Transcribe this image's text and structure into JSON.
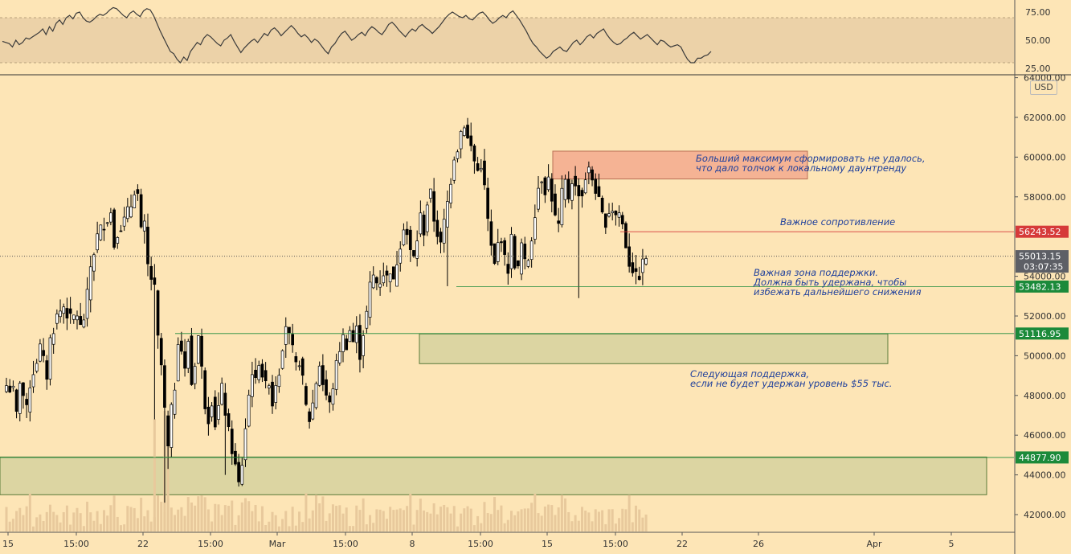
{
  "chart_data": [
    {
      "type": "line",
      "name": "rsi-panel",
      "ylim": [
        17,
        82
      ],
      "band": [
        30,
        70
      ],
      "y_ticks": [
        "75.00",
        "50.00",
        "25.00"
      ],
      "y_tick_values": [
        75,
        50,
        25
      ],
      "values": [
        49,
        48,
        47,
        44,
        50,
        46,
        48,
        52,
        51,
        53,
        55,
        57,
        60,
        55,
        62,
        58,
        65,
        68,
        64,
        70,
        72,
        69,
        74,
        75,
        70,
        67,
        66,
        68,
        71,
        73,
        72,
        74,
        77,
        79,
        78,
        75,
        72,
        70,
        74,
        76,
        73,
        71,
        76,
        78,
        77,
        72,
        65,
        58,
        52,
        46,
        40,
        38,
        33,
        30,
        35,
        32,
        40,
        44,
        48,
        46,
        52,
        55,
        53,
        50,
        47,
        45,
        50,
        52,
        55,
        49,
        44,
        39,
        43,
        46,
        49,
        51,
        48,
        52,
        56,
        54,
        59,
        61,
        58,
        54,
        57,
        60,
        63,
        60,
        56,
        53,
        55,
        52,
        48,
        51,
        49,
        45,
        41,
        38,
        44,
        47,
        52,
        56,
        58,
        54,
        50,
        52,
        55,
        57,
        54,
        59,
        62,
        60,
        57,
        55,
        59,
        64,
        66,
        63,
        59,
        56,
        53,
        57,
        60,
        58,
        62,
        64,
        61,
        59,
        56,
        59,
        62,
        66,
        70,
        73,
        75,
        73,
        71,
        70,
        72,
        69,
        68,
        71,
        74,
        75,
        72,
        68,
        65,
        67,
        70,
        72,
        70,
        74,
        76,
        72,
        68,
        63,
        58,
        52,
        47,
        44,
        40,
        37,
        34,
        36,
        40,
        42,
        44,
        41,
        40,
        44,
        48,
        50,
        46,
        49,
        53,
        55,
        52,
        56,
        58,
        60,
        55,
        51,
        48,
        46,
        47,
        50,
        52,
        55,
        57,
        54,
        51,
        53,
        55,
        52,
        49,
        46,
        50,
        49,
        46,
        44,
        45,
        46,
        44,
        38,
        33,
        30,
        30,
        34,
        34,
        36,
        37,
        40
      ]
    },
    {
      "type": "candlestick",
      "name": "price-panel",
      "currency": "USD",
      "ylim": [
        41000,
        64000
      ],
      "y_ticks": [
        "64000.00",
        "62000.00",
        "60000.00",
        "58000.00",
        "54000.00",
        "52000.00",
        "50000.00",
        "48000.00",
        "46000.00",
        "44000.00",
        "42000.00"
      ],
      "y_tick_values": [
        64000,
        62000,
        60000,
        58000,
        54000,
        52000,
        50000,
        48000,
        46000,
        44000,
        42000
      ],
      "x_ticks": [
        "15",
        "15:00",
        "22",
        "15:00",
        "Mar",
        "15:00",
        "8",
        "15:00",
        "15",
        "15:00",
        "22",
        "26",
        "Apr",
        "5"
      ],
      "close_path": [
        [
          0,
          48500
        ],
        [
          2,
          48200
        ],
        [
          3,
          47000
        ],
        [
          4,
          48800
        ],
        [
          6,
          47200
        ],
        [
          7,
          48600
        ],
        [
          9,
          49800
        ],
        [
          10,
          50400
        ],
        [
          12,
          49000
        ],
        [
          13,
          50800
        ],
        [
          15,
          52000
        ],
        [
          17,
          52500
        ],
        [
          19,
          51800
        ],
        [
          21,
          52100
        ],
        [
          22,
          51400
        ],
        [
          23,
          51900
        ],
        [
          24,
          53000
        ],
        [
          25,
          54500
        ],
        [
          27,
          56000
        ],
        [
          29,
          56700
        ],
        [
          31,
          57200
        ],
        [
          32,
          55600
        ],
        [
          33,
          56300
        ],
        [
          35,
          56800
        ],
        [
          37,
          57600
        ],
        [
          38,
          58400
        ],
        [
          39,
          58100
        ],
        [
          40,
          56200
        ],
        [
          41,
          56500
        ],
        [
          42,
          54500
        ],
        [
          44,
          53300
        ],
        [
          45,
          50800
        ],
        [
          46,
          49500
        ],
        [
          47,
          47200
        ],
        [
          48,
          45300
        ],
        [
          49,
          47200
        ],
        [
          50,
          48500
        ],
        [
          51,
          50900
        ],
        [
          52,
          50300
        ],
        [
          53,
          49200
        ],
        [
          54,
          50800
        ],
        [
          55,
          48600
        ],
        [
          56,
          49700
        ],
        [
          57,
          51000
        ],
        [
          58,
          49300
        ],
        [
          59,
          47600
        ],
        [
          60,
          46900
        ],
        [
          61,
          47800
        ],
        [
          62,
          46600
        ],
        [
          63,
          47400
        ],
        [
          64,
          48300
        ],
        [
          65,
          47200
        ],
        [
          66,
          46100
        ],
        [
          67,
          45300
        ],
        [
          68,
          44400
        ],
        [
          69,
          43500
        ],
        [
          70,
          44600
        ],
        [
          71,
          46400
        ],
        [
          72,
          48000
        ],
        [
          73,
          49300
        ],
        [
          74,
          48600
        ],
        [
          75,
          49800
        ],
        [
          76,
          49100
        ],
        [
          77,
          48400
        ],
        [
          78,
          48800
        ],
        [
          79,
          47600
        ],
        [
          80,
          48700
        ],
        [
          81,
          49300
        ],
        [
          82,
          50600
        ],
        [
          83,
          51600
        ],
        [
          84,
          50900
        ],
        [
          85,
          50200
        ],
        [
          86,
          49400
        ],
        [
          87,
          49800
        ],
        [
          88,
          48700
        ],
        [
          89,
          47400
        ],
        [
          90,
          46800
        ],
        [
          91,
          47600
        ],
        [
          92,
          48700
        ],
        [
          93,
          49600
        ],
        [
          94,
          48600
        ],
        [
          95,
          48000
        ],
        [
          96,
          47500
        ],
        [
          97,
          48500
        ],
        [
          98,
          49500
        ],
        [
          99,
          50400
        ],
        [
          100,
          50900
        ],
        [
          101,
          50600
        ],
        [
          102,
          51300
        ],
        [
          103,
          50700
        ],
        [
          104,
          51300
        ],
        [
          105,
          50100
        ],
        [
          106,
          51200
        ],
        [
          107,
          52100
        ],
        [
          108,
          53500
        ],
        [
          109,
          54000
        ],
        [
          110,
          53700
        ],
        [
          111,
          53800
        ],
        [
          112,
          54200
        ],
        [
          113,
          53900
        ],
        [
          114,
          54400
        ],
        [
          115,
          53600
        ],
        [
          116,
          54800
        ],
        [
          117,
          55700
        ],
        [
          118,
          56600
        ],
        [
          119,
          56100
        ],
        [
          120,
          55200
        ],
        [
          121,
          54900
        ],
        [
          122,
          55900
        ],
        [
          123,
          57000
        ],
        [
          124,
          56300
        ],
        [
          125,
          57700
        ],
        [
          126,
          58100
        ],
        [
          127,
          56900
        ],
        [
          128,
          56200
        ],
        [
          129,
          55500
        ],
        [
          130,
          56700
        ],
        [
          131,
          57700
        ],
        [
          132,
          58900
        ],
        [
          133,
          60100
        ],
        [
          134,
          60500
        ],
        [
          135,
          61300
        ],
        [
          136,
          61700
        ],
        [
          137,
          60900
        ],
        [
          138,
          60500
        ],
        [
          139,
          59800
        ],
        [
          140,
          59300
        ],
        [
          141,
          59700
        ],
        [
          142,
          58400
        ],
        [
          143,
          56800
        ],
        [
          144,
          55400
        ],
        [
          145,
          54500
        ],
        [
          146,
          55600
        ],
        [
          147,
          56000
        ],
        [
          148,
          54800
        ],
        [
          149,
          54400
        ],
        [
          150,
          55900
        ],
        [
          151,
          54700
        ],
        [
          152,
          54300
        ],
        [
          153,
          55600
        ],
        [
          154,
          54600
        ],
        [
          155,
          54900
        ],
        [
          156,
          56000
        ],
        [
          157,
          57300
        ],
        [
          158,
          58500
        ],
        [
          159,
          59000
        ],
        [
          160,
          58400
        ],
        [
          161,
          58900
        ],
        [
          162,
          58000
        ],
        [
          163,
          56900
        ],
        [
          164,
          56500
        ],
        [
          165,
          58100
        ],
        [
          166,
          58700
        ],
        [
          167,
          58000
        ],
        [
          168,
          58900
        ],
        [
          169,
          58400
        ],
        [
          170,
          58300
        ],
        [
          171,
          58100
        ],
        [
          172,
          59000
        ],
        [
          173,
          59300
        ],
        [
          174,
          58900
        ],
        [
          175,
          58400
        ],
        [
          176,
          57700
        ],
        [
          177,
          57000
        ],
        [
          178,
          56800
        ],
        [
          179,
          57300
        ],
        [
          180,
          57400
        ],
        [
          181,
          57100
        ],
        [
          182,
          57200
        ],
        [
          183,
          56600
        ],
        [
          184,
          55600
        ],
        [
          185,
          54700
        ],
        [
          186,
          54400
        ],
        [
          187,
          53900
        ],
        [
          188,
          54100
        ],
        [
          189,
          54600
        ],
        [
          190,
          55000
        ]
      ],
      "horizontal_levels": [
        {
          "price": 56243.52,
          "label": "56243.52",
          "color": "#d63a3a"
        },
        {
          "price": 55013.15,
          "label": "55013.15",
          "countdown": "03:07:35",
          "color": "#5d5f66"
        },
        {
          "price": 53482.13,
          "label": "53482.13",
          "color": "#1b8a3a"
        },
        {
          "price": 51116.95,
          "label": "51116.95",
          "color": "#1b8a3a"
        },
        {
          "price": 44877.9,
          "label": "44877.90",
          "color": "#1b8a3a"
        }
      ],
      "zones": [
        {
          "type": "resistance",
          "from": 58900,
          "to": 60300,
          "color": "#f5b394"
        },
        {
          "type": "support",
          "from": 49600,
          "to": 51100,
          "color": "#dcd5a2"
        },
        {
          "type": "support",
          "from": 43000,
          "to": 44900,
          "color": "#dcd5a2"
        }
      ],
      "annotations": [
        "Больший максимум сформировать не удалось,\nчто дало толчок к локальному даунтренду",
        "Важное сопротивление",
        "Важная зона поддержки.\nДолжна быть удержана, чтобы\nизбежать дальнейшего снижения",
        "Следующая поддержка,\nесли не будет удержан уровень $55 тыс."
      ]
    }
  ],
  "colors": {
    "background": "#fde5b6",
    "bull": "#ffffff",
    "bear": "#000000",
    "rsi_band": "#ecd2a8",
    "volume": "#e8c99c",
    "annotation_text": "#1e3f9c"
  }
}
